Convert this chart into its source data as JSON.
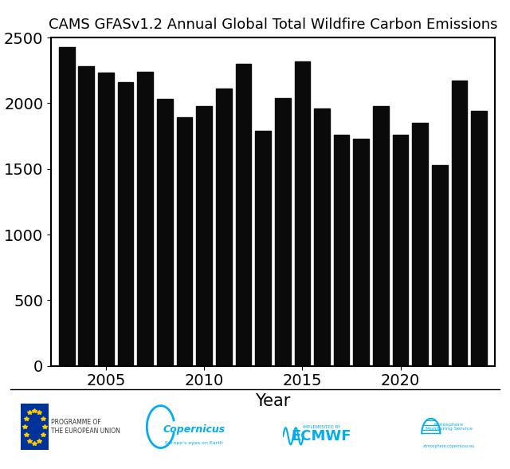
{
  "title": "CAMS GFASv1.2 Annual Global Total Wildfire Carbon Emissions",
  "xlabel": "Year",
  "ylabel": "",
  "years": [
    2003,
    2004,
    2005,
    2006,
    2007,
    2008,
    2009,
    2010,
    2011,
    2012,
    2013,
    2014,
    2015,
    2016,
    2017,
    2018,
    2019,
    2020,
    2021,
    2022,
    2023,
    2024
  ],
  "values": [
    2430,
    2280,
    2230,
    2160,
    2240,
    2030,
    1890,
    1975,
    2110,
    2300,
    1790,
    2040,
    2320,
    1960,
    1760,
    1730,
    1980,
    1760,
    1850,
    1530,
    2170,
    1940
  ],
  "bar_color": "#0a0a0a",
  "ylim": [
    0,
    2500
  ],
  "yticks": [
    0,
    500,
    1000,
    1500,
    2000,
    2500
  ],
  "xticks": [
    2005,
    2010,
    2015,
    2020
  ],
  "title_fontsize": 13,
  "tick_fontsize": 14,
  "label_fontsize": 15,
  "background_color": "#ffffff"
}
